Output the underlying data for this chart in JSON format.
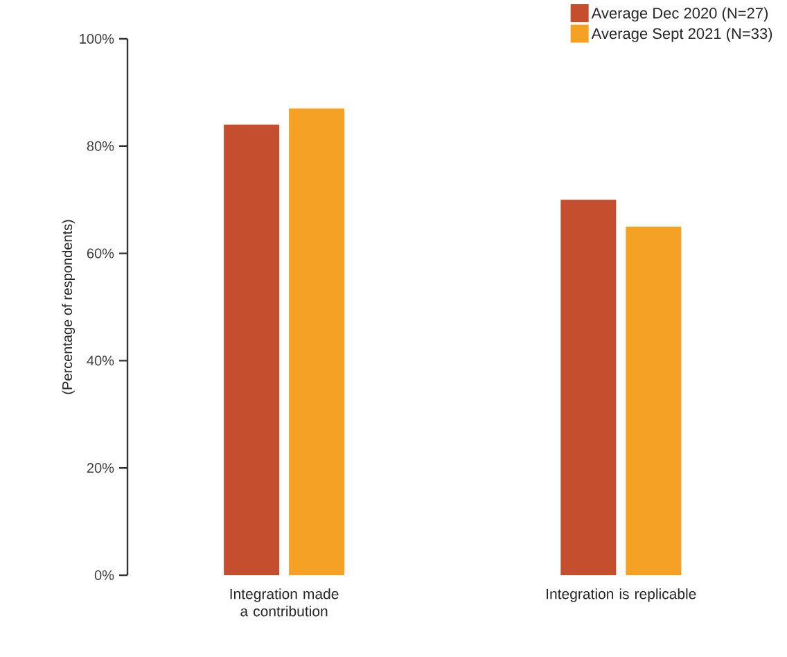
{
  "chart_data": {
    "type": "bar",
    "categories": [
      "Integration made a contribution",
      "Integration is replicable"
    ],
    "series": [
      {
        "name": "Average Dec 2020 (N=27)",
        "color": "#c44e2d",
        "values": [
          84,
          70
        ]
      },
      {
        "name": "Average Sept 2021 (N=33)",
        "color": "#f5a124",
        "values": [
          87,
          65
        ]
      }
    ],
    "ylabel": "(Percentage of respondents)",
    "ylim": [
      0,
      100
    ],
    "yticks": [
      {
        "value": 0,
        "label": "0%"
      },
      {
        "value": 20,
        "label": "20%"
      },
      {
        "value": 40,
        "label": "40%"
      },
      {
        "value": 60,
        "label": "60%"
      },
      {
        "value": 80,
        "label": "80%"
      },
      {
        "value": 100,
        "label": "100%"
      }
    ],
    "grid": false,
    "legend": "top right"
  }
}
